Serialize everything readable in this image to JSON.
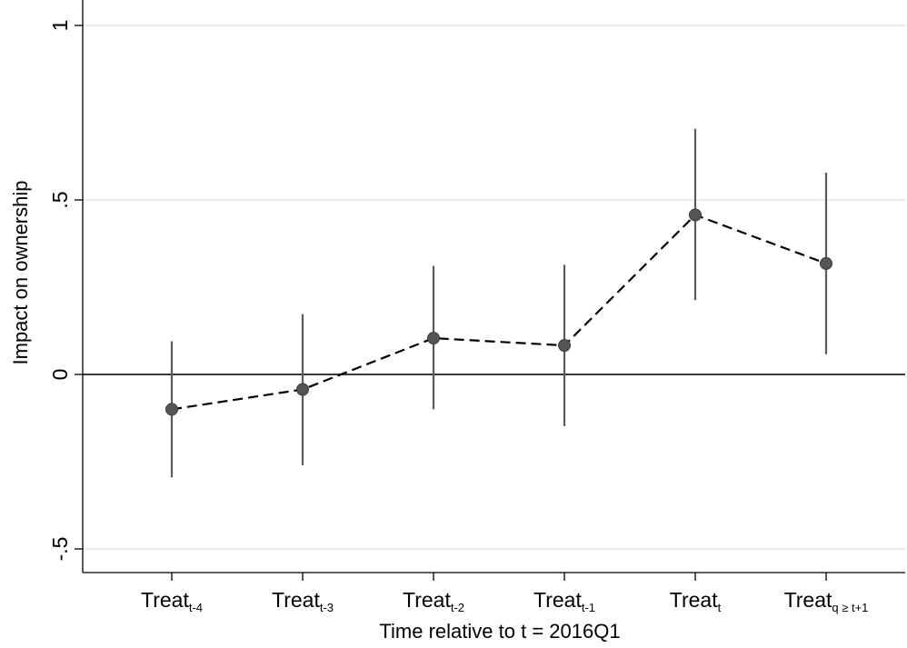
{
  "chart_data": {
    "type": "scatter",
    "title": "",
    "xlabel": "Time relative to t = 2016Q1",
    "ylabel": "Impact on ownership",
    "ylim": [
      -0.57,
      1.05
    ],
    "yticks": [
      {
        "value": -0.5,
        "label": "-.5"
      },
      {
        "value": 0,
        "label": "0"
      },
      {
        "value": 0.5,
        "label": ".5"
      },
      {
        "value": 1,
        "label": "1"
      }
    ],
    "grid": true,
    "legend": "none",
    "connector": "dashed",
    "categories": [
      {
        "base": "Treat",
        "sub": "t-4"
      },
      {
        "base": "Treat",
        "sub": "t-3"
      },
      {
        "base": "Treat",
        "sub": "t-2"
      },
      {
        "base": "Treat",
        "sub": "t-1"
      },
      {
        "base": "Treat",
        "sub": "t"
      },
      {
        "base": "Treat",
        "sub": "q ≥ t+1"
      }
    ],
    "points": [
      {
        "estimate": -0.1,
        "ci_low": -0.295,
        "ci_high": 0.095
      },
      {
        "estimate": -0.043,
        "ci_low": -0.26,
        "ci_high": 0.173
      },
      {
        "estimate": 0.104,
        "ci_low": -0.1,
        "ci_high": 0.311
      },
      {
        "estimate": 0.083,
        "ci_low": -0.148,
        "ci_high": 0.314
      },
      {
        "estimate": 0.457,
        "ci_low": 0.213,
        "ci_high": 0.704
      },
      {
        "estimate": 0.318,
        "ci_low": 0.058,
        "ci_high": 0.578
      }
    ],
    "colors": {
      "marker": "#555555",
      "ci": "#5a5a5a",
      "connector": "#000000",
      "grid": "#e4e4e4",
      "axis": "#000000",
      "zero_line": "#3a3a3a"
    }
  }
}
